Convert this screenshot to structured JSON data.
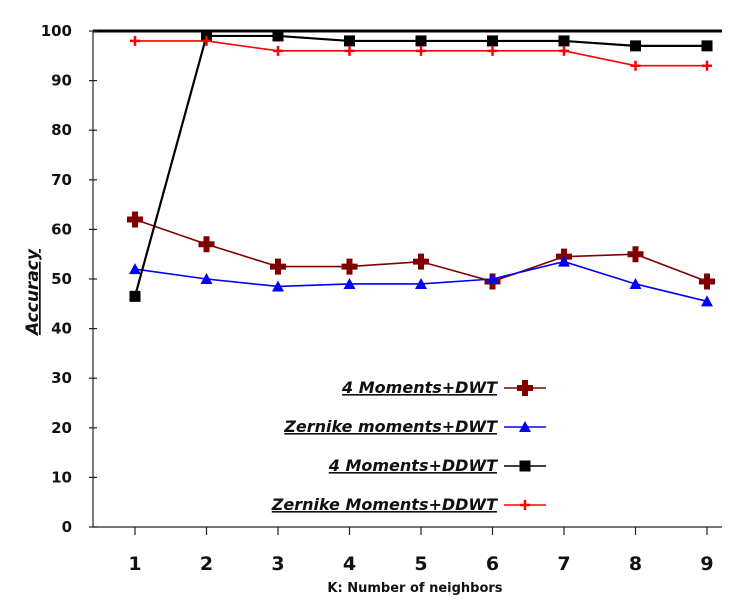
{
  "chart_data": {
    "type": "line",
    "xlabel": "K: Number of neighbors",
    "ylabel": "Accuracy",
    "x": [
      1,
      2,
      3,
      4,
      5,
      6,
      7,
      8,
      9
    ],
    "xticks": [
      "1",
      "2",
      "3",
      "4",
      "5",
      "6",
      "7",
      "8",
      "9"
    ],
    "yticks": [
      "0",
      "10",
      "20",
      "30",
      "40",
      "50",
      "60",
      "70",
      "80",
      "90",
      "100"
    ],
    "ylim": [
      0,
      100
    ],
    "grid": false,
    "legend_position": "lower-center",
    "series": [
      {
        "name": "4 Moments+DWT",
        "color": "#800000",
        "marker": "plus-thick",
        "values": [
          62,
          57,
          52.5,
          52.5,
          53.5,
          49.5,
          54.5,
          55,
          49.5
        ]
      },
      {
        "name": "Zernike moments+DWT",
        "color": "#0000ff",
        "marker": "triangle",
        "values": [
          52,
          50,
          48.5,
          49,
          49,
          50,
          53.5,
          49,
          45.5
        ]
      },
      {
        "name": "4 Moments+DDWT",
        "color": "#000000",
        "marker": "square",
        "values": [
          46.5,
          99,
          99,
          98,
          98,
          98,
          98,
          97,
          97
        ]
      },
      {
        "name": "Zernike Moments+DDWT",
        "color": "#ff0000",
        "marker": "plus-thin",
        "values": [
          98,
          98,
          96,
          96,
          96,
          96,
          96,
          93,
          93
        ]
      }
    ]
  }
}
